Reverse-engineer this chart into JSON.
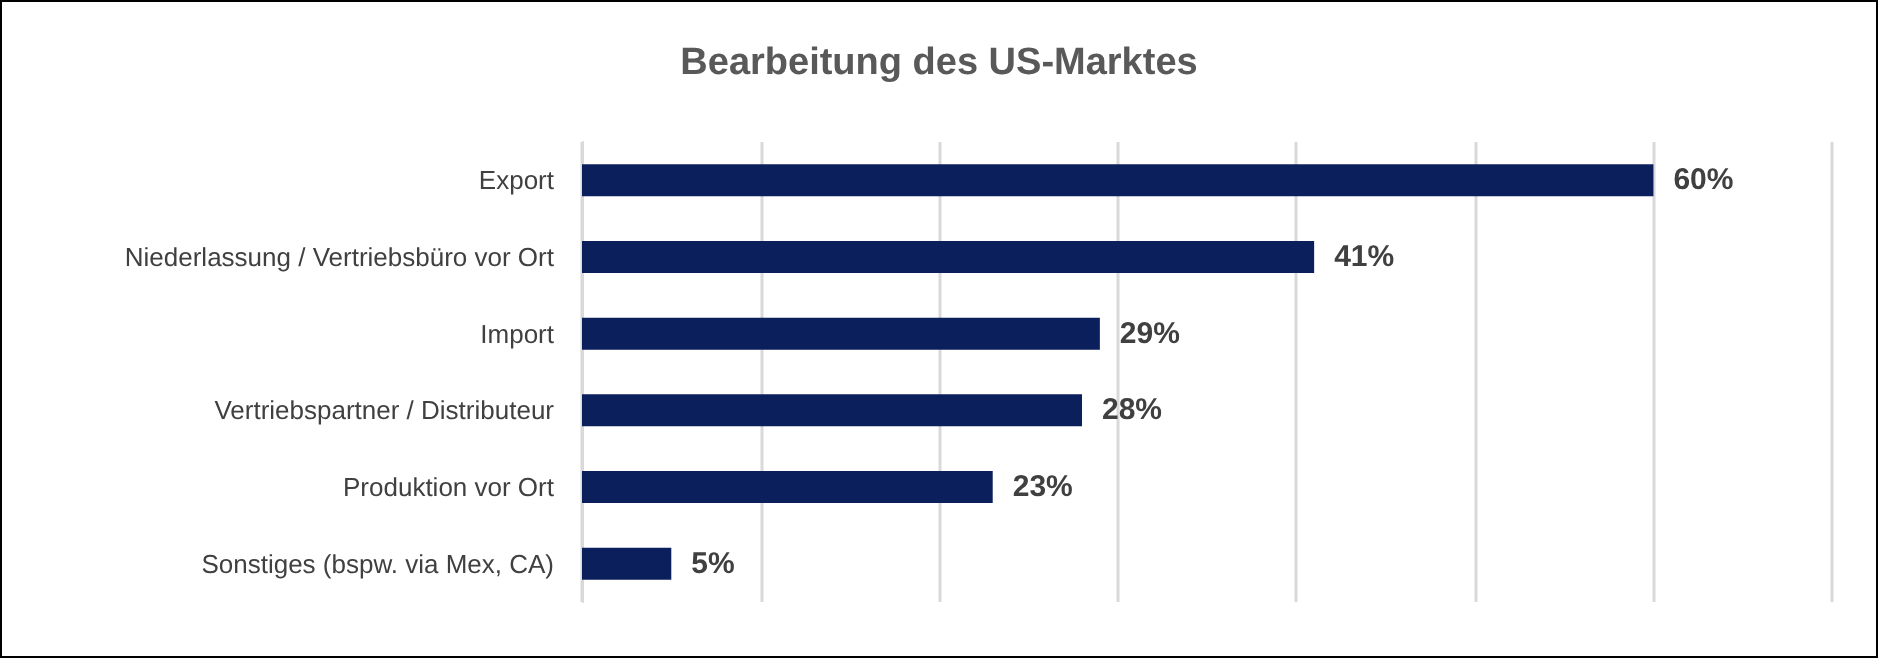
{
  "chart_data": {
    "type": "bar",
    "orientation": "horizontal",
    "title": "Bearbeitung des US-Marktes",
    "categories": [
      "Export",
      "Niederlassung / Vertriebsbüro vor Ort",
      "Import",
      "Vertriebspartner / Distributeur",
      "Produktion vor Ort",
      "Sonstiges (bspw. via Mex, CA)"
    ],
    "values": [
      60,
      41,
      29,
      28,
      23,
      5
    ],
    "value_labels": [
      "60%",
      "41%",
      "29%",
      "28%",
      "23%",
      "5%"
    ],
    "color": "#0b1f5c",
    "xlim": [
      0,
      70
    ],
    "xticks": [
      {
        "value": 0,
        "label": null
      },
      {
        "value": 10,
        "label": null
      },
      {
        "value": 20,
        "label": null
      },
      {
        "value": 30,
        "label": null
      },
      {
        "value": 40,
        "label": null
      },
      {
        "value": 50,
        "label": null
      },
      {
        "value": 60,
        "label": null
      },
      {
        "value": 70,
        "label": null
      }
    ],
    "tick_labels": "y",
    "grid": "x"
  }
}
